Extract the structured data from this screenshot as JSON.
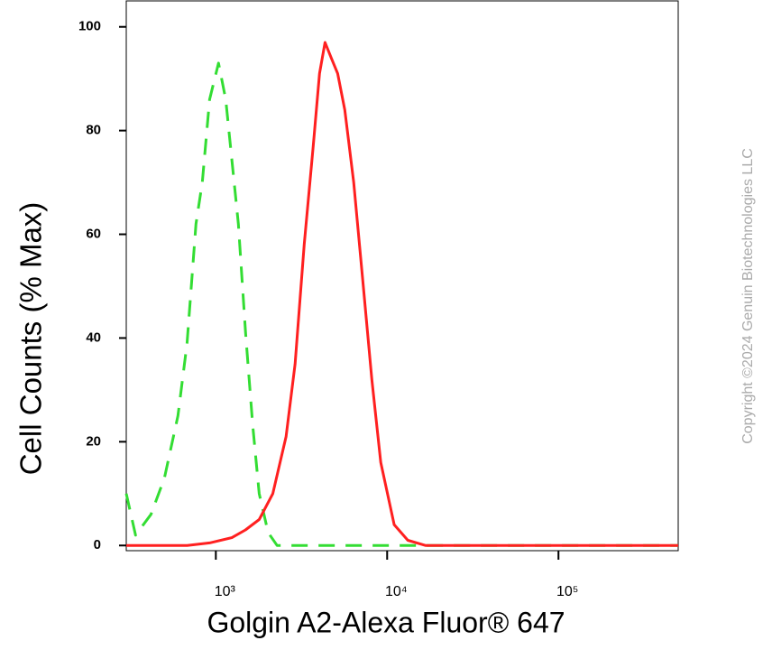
{
  "chart_data": {
    "type": "line",
    "x_label": "Golgin A2-Alexa Fluor® 647",
    "y_label": "Cell Counts (% Max)",
    "watermark": "Copyright ©2024 Genuin Biotechnologies LLC",
    "x_scale": "log",
    "xlim": [
      300,
      500000
    ],
    "xticks": [
      {
        "value": 1000,
        "label": "10³"
      },
      {
        "value": 10000,
        "label": "10⁴"
      },
      {
        "value": 100000,
        "label": "10⁵"
      }
    ],
    "ylim": [
      -1,
      105
    ],
    "yticks": [
      0,
      20,
      40,
      60,
      80,
      100
    ],
    "series": [
      {
        "color": "#33dd33",
        "dashed": true,
        "x": [
          300,
          340,
          418,
          501,
          601,
          679,
          766,
          834,
          919,
          1037,
          1143,
          1244,
          1354,
          1492,
          1643,
          1790,
          2019,
          2280,
          500000
        ],
        "values": [
          10,
          2,
          6,
          13,
          25,
          39,
          62,
          70,
          86,
          93,
          86,
          74,
          62,
          41,
          23,
          10,
          2.5,
          0,
          0
        ]
      },
      {
        "color": "#ff2020",
        "dashed": false,
        "x": [
          300,
          680,
          920,
          1240,
          1490,
          1790,
          2150,
          2570,
          2900,
          3280,
          3700,
          4030,
          4340,
          4720,
          5140,
          5660,
          6380,
          7210,
          8140,
          9180,
          11000,
          13200,
          16800,
          21500,
          500000
        ],
        "values": [
          0,
          0,
          0.5,
          1.5,
          3,
          5,
          10,
          21,
          35,
          58,
          77,
          91,
          97,
          94,
          91,
          84,
          70,
          51,
          32,
          16,
          4,
          1,
          0,
          0,
          0
        ]
      }
    ]
  }
}
